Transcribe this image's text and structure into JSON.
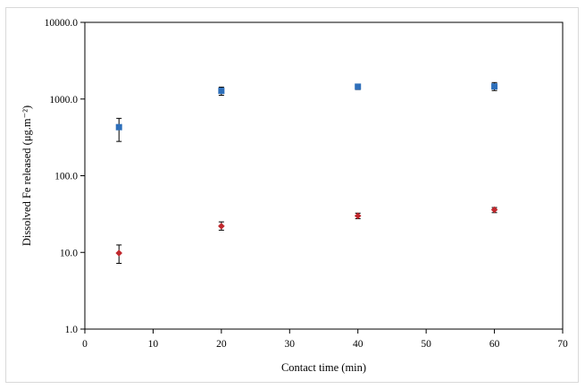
{
  "chart_data": {
    "type": "scatter",
    "title": "",
    "xlabel": "Contact time (min)",
    "ylabel": "Dissolved Fe released (μg.m⁻²)",
    "xlim": [
      0,
      70
    ],
    "ylim": [
      1,
      10000
    ],
    "yscale": "log",
    "x_ticks": [
      0,
      10,
      20,
      30,
      40,
      50,
      60,
      70
    ],
    "y_ticks": [
      1,
      10,
      100,
      1000,
      10000
    ],
    "y_tick_labels": [
      "1.0",
      "10.0",
      "100.0",
      "1000.0",
      "10000.0"
    ],
    "grid": false,
    "legend": "none",
    "series": [
      {
        "color": "#2e6fba",
        "marker": "square",
        "x": [
          5,
          20,
          40,
          60
        ],
        "y": [
          430,
          1280,
          1450,
          1460
        ],
        "err_low": [
          280,
          1120,
          1330,
          1290
        ],
        "err_high": [
          560,
          1430,
          1560,
          1640
        ]
      },
      {
        "color": "#c0282d",
        "marker": "diamond",
        "x": [
          5,
          20,
          40,
          60
        ],
        "y": [
          9.8,
          22,
          30,
          36
        ],
        "err_low": [
          7.2,
          19.5,
          27.5,
          33
        ],
        "err_high": [
          12.5,
          25,
          32.5,
          38.5
        ]
      }
    ]
  }
}
